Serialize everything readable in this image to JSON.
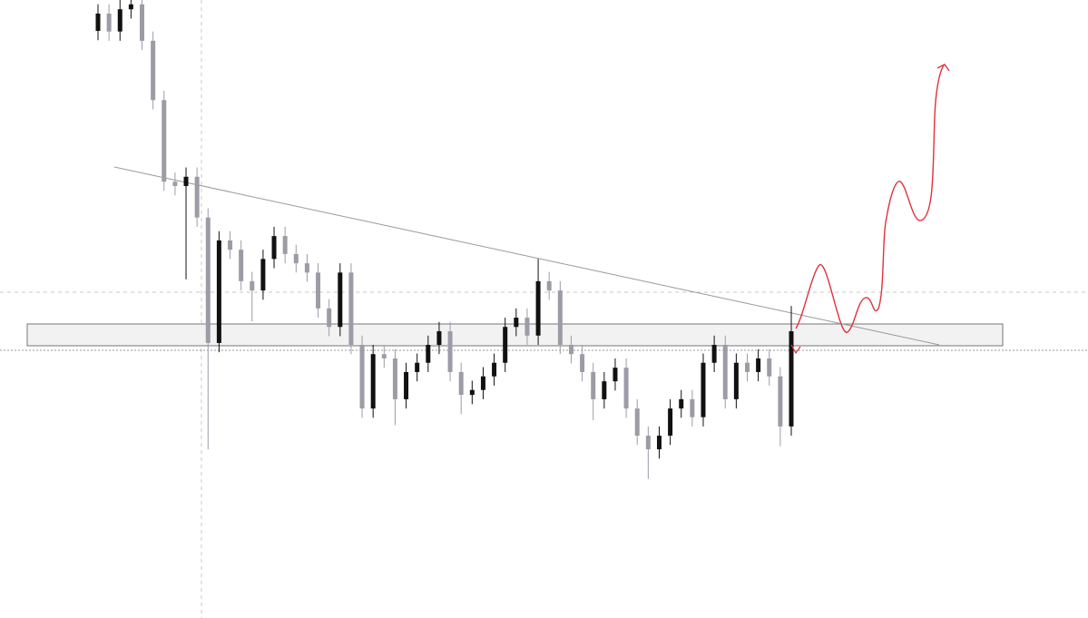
{
  "chart_data": {
    "type": "candlestick",
    "up_color": "#111111",
    "down_color": "#9c9ca6",
    "ylim": [
      0,
      100
    ],
    "open": [
      95.0,
      97.8,
      94.9,
      98.5,
      99.3,
      93.4,
      83.8,
      70.6,
      69.9,
      71.4,
      64.8,
      44.5,
      61.1,
      59.6,
      54.5,
      53.0,
      58.1,
      61.8,
      58.9,
      57.4,
      55.9,
      50.1,
      47.1,
      55.9,
      44.2,
      33.9,
      42.7,
      42.0,
      35.4,
      39.8,
      41.3,
      44.2,
      46.4,
      39.8,
      36.1,
      36.9,
      39.1,
      41.3,
      47.1,
      48.6,
      45.7,
      54.5,
      53.0,
      44.2,
      42.7,
      39.8,
      35.4,
      38.3,
      40.5,
      33.9,
      29.5,
      27.3,
      29.5,
      33.9,
      35.4,
      32.5,
      41.3,
      44.2,
      35.4,
      41.3,
      39.8,
      42.0,
      39.1,
      31.0
    ],
    "high": [
      99.3,
      99.3,
      100.0,
      100.8,
      100.8,
      94.9,
      85.3,
      72.1,
      72.9,
      72.9,
      66.3,
      62.6,
      62.6,
      61.1,
      56.0,
      59.6,
      63.3,
      63.3,
      60.4,
      58.9,
      57.4,
      51.6,
      57.4,
      57.4,
      45.7,
      44.2,
      44.2,
      43.5,
      41.3,
      42.8,
      45.7,
      47.9,
      47.9,
      41.3,
      38.4,
      40.6,
      42.8,
      48.6,
      50.1,
      50.1,
      58.1,
      56.0,
      54.5,
      45.7,
      44.2,
      41.3,
      39.8,
      42.0,
      42.0,
      35.4,
      31.0,
      31.0,
      35.4,
      36.9,
      36.9,
      42.8,
      45.7,
      45.7,
      42.8,
      42.8,
      43.5,
      43.5,
      40.6,
      50.5
    ],
    "low": [
      93.5,
      93.4,
      93.4,
      97.0,
      91.9,
      82.3,
      69.1,
      68.4,
      54.8,
      63.3,
      27.3,
      43.0,
      58.1,
      53.0,
      48.0,
      51.5,
      56.6,
      57.4,
      55.9,
      54.4,
      48.6,
      45.6,
      45.6,
      42.7,
      32.4,
      32.4,
      40.5,
      31.2,
      33.9,
      38.3,
      39.8,
      42.7,
      38.3,
      33.0,
      34.6,
      35.4,
      37.6,
      39.8,
      45.6,
      44.2,
      44.2,
      51.5,
      42.7,
      41.2,
      38.3,
      32.0,
      33.9,
      36.8,
      32.4,
      28.0,
      22.5,
      25.8,
      28.0,
      32.4,
      31.0,
      31.0,
      39.8,
      33.9,
      33.9,
      38.3,
      38.3,
      37.6,
      27.8,
      29.5
    ],
    "close": [
      97.8,
      94.9,
      98.5,
      99.3,
      93.4,
      83.8,
      70.6,
      69.9,
      71.4,
      64.8,
      44.5,
      61.1,
      59.6,
      54.5,
      53.0,
      58.1,
      61.8,
      58.9,
      57.4,
      55.9,
      50.1,
      47.1,
      55.9,
      44.2,
      33.9,
      42.7,
      42.0,
      35.4,
      39.8,
      41.3,
      44.2,
      46.4,
      39.8,
      36.1,
      36.9,
      39.1,
      41.3,
      47.1,
      48.6,
      45.7,
      54.5,
      53.0,
      44.2,
      42.7,
      39.8,
      35.4,
      38.3,
      40.5,
      33.9,
      29.5,
      27.3,
      29.5,
      33.9,
      35.4,
      32.5,
      41.3,
      44.2,
      35.4,
      41.3,
      39.8,
      42.0,
      39.1,
      31.0,
      46.4
    ]
  }
}
